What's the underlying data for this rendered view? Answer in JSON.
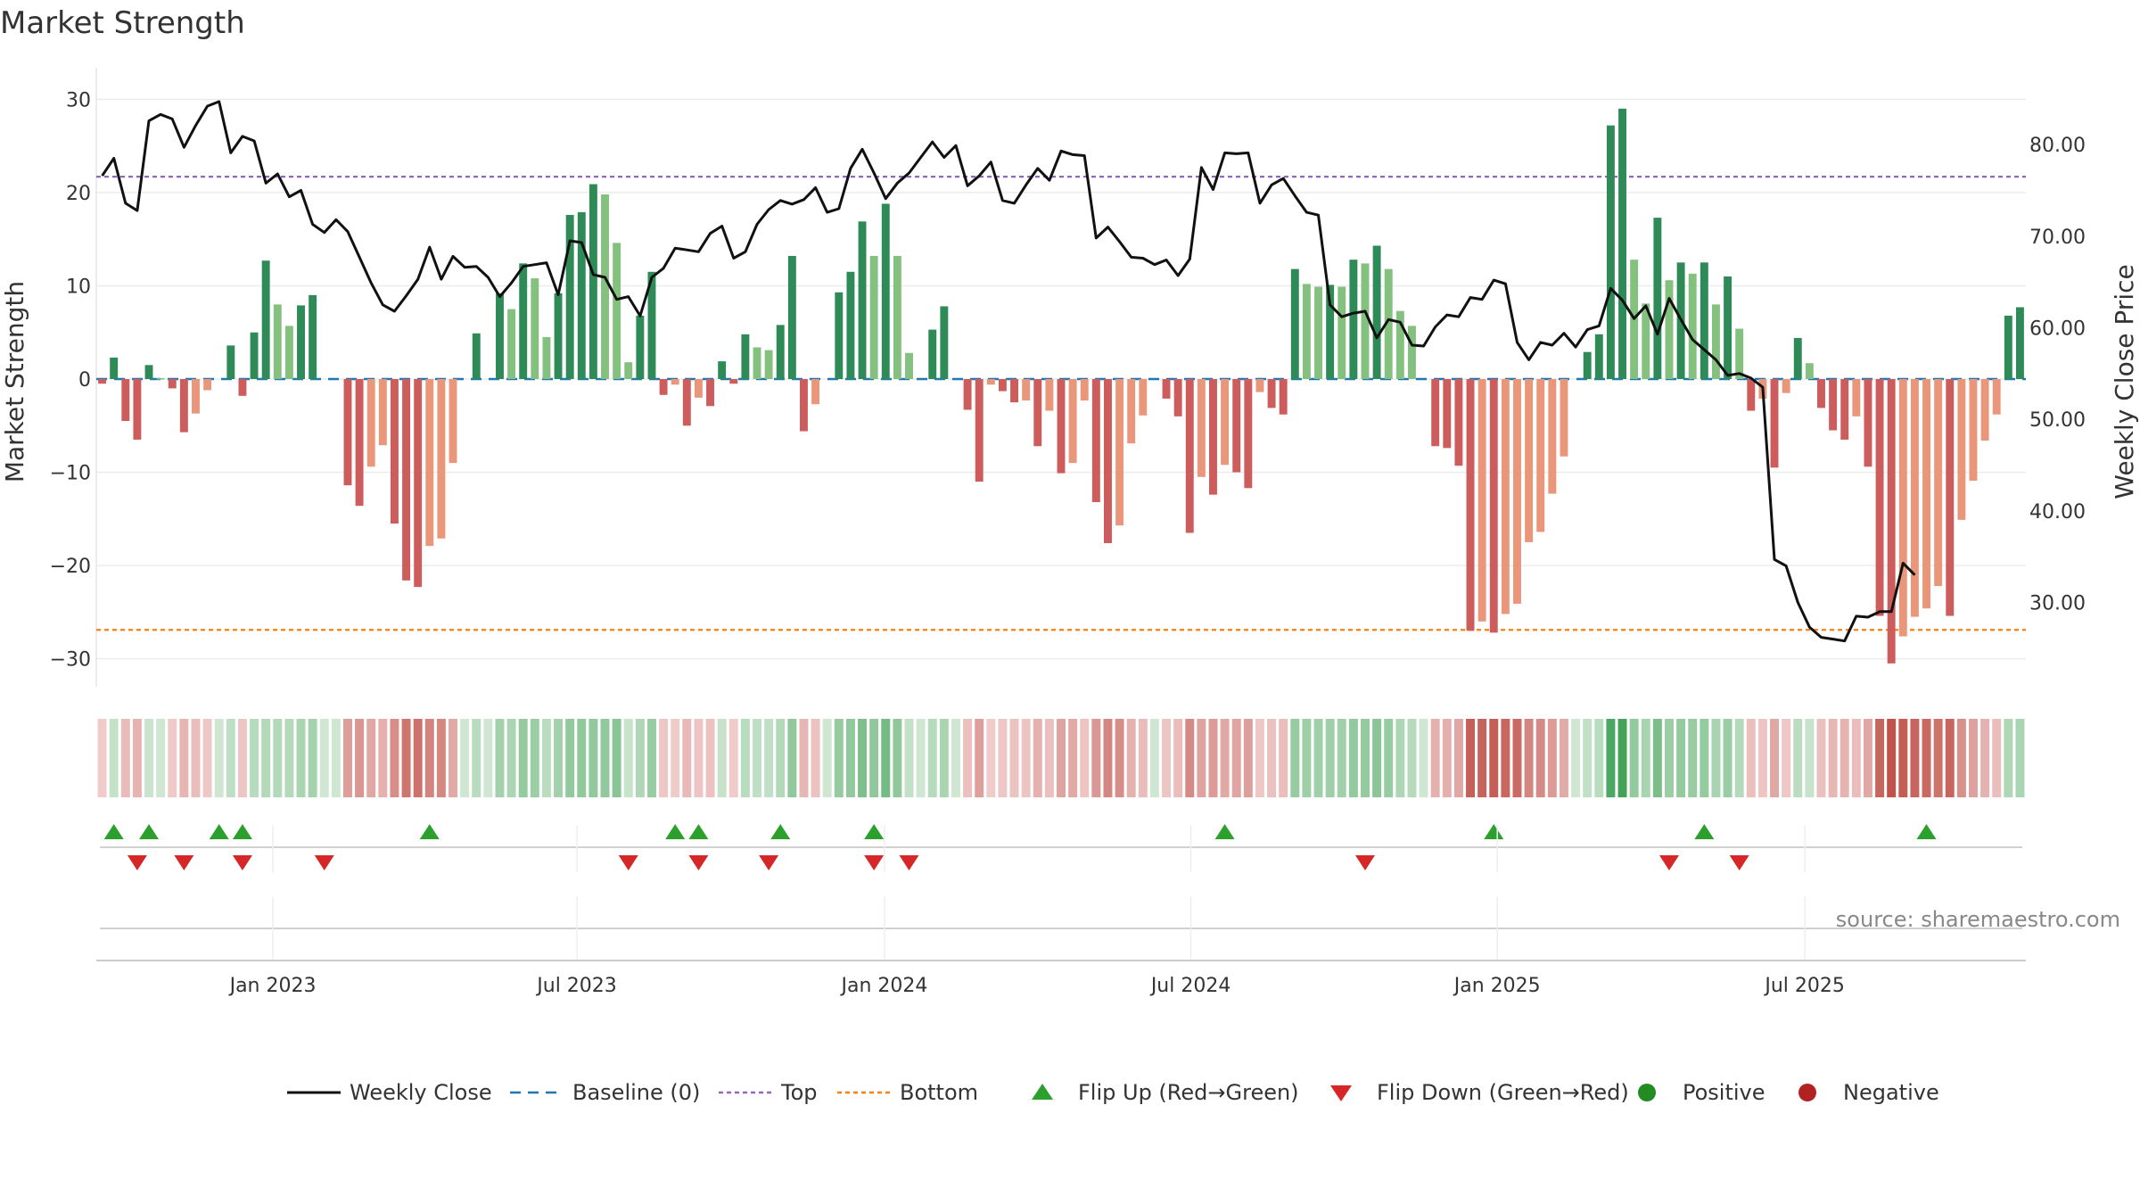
{
  "chart_data": {
    "type": "bar",
    "title": "Market Strength",
    "ylabel_left": "Market Strength",
    "ylabel_right": "Weekly Close Price",
    "source": "source: sharemaestro.com",
    "ylim_left": [
      -33,
      33
    ],
    "ylim_right": [
      20.8,
      88
    ],
    "yticks_left": [
      "30",
      "20",
      "10",
      "0",
      "−10",
      "−20",
      "−30"
    ],
    "yticks_left_values": [
      30,
      20,
      10,
      0,
      -10,
      -20,
      -30
    ],
    "yticks_right": [
      "80.00",
      "70.00",
      "60.00",
      "50.00",
      "40.00",
      "30.00"
    ],
    "yticks_right_values": [
      80,
      70,
      60,
      50,
      40,
      30
    ],
    "x_labels": [
      "Jan 2023",
      "Jul 2023",
      "Jan 2024",
      "Jul 2024",
      "Jan 2025",
      "Jul 2025"
    ],
    "x_label_weeks": [
      14.6,
      40.6,
      66.9,
      93.1,
      119.3,
      145.6
    ],
    "top_line": 21.7,
    "bottom_line": -26.9,
    "colors": {
      "strong_pos": "#2e8b57",
      "weak_pos": "#85c17e",
      "strong_neg": "#cd5c5c",
      "weak_neg": "#e9967a",
      "close": "#111111",
      "baseline": "#1f77b4",
      "top": "#9467bd",
      "bottom": "#ff7f0e",
      "flip_up": "#2ca02c",
      "flip_down": "#d62728",
      "positive": "#228b22",
      "negative": "#b22222"
    },
    "strength": [
      -0.5,
      2.3,
      -4.5,
      -6.5,
      1.5,
      0.1,
      -1,
      -5.7,
      -3.7,
      -1.2,
      0,
      3.6,
      -1.8,
      5,
      12.7,
      8,
      5.7,
      7.9,
      9,
      0,
      0,
      -11.4,
      -13.6,
      -9.4,
      -7.1,
      -15.5,
      -21.6,
      -22.3,
      -17.9,
      -17.1,
      -9,
      0,
      4.9,
      0,
      9.2,
      7.5,
      12.4,
      10.8,
      4.5,
      9.2,
      17.6,
      17.9,
      20.9,
      19.8,
      14.6,
      1.8,
      6.8,
      11.5,
      -1.7,
      -0.6,
      -5,
      -2,
      -2.9,
      1.9,
      -0.5,
      4.8,
      3.4,
      3.1,
      5.8,
      13.2,
      -5.6,
      -2.7,
      0,
      9.3,
      11.5,
      16.9,
      13.2,
      18.8,
      13.2,
      2.8,
      0,
      5.3,
      7.8,
      0,
      -3.3,
      -11,
      -0.6,
      -1.3,
      -2.5,
      -2.3,
      -7.2,
      -3.4,
      -10.1,
      -9,
      -2.3,
      -13.2,
      -17.6,
      -15.7,
      -6.9,
      -3.9,
      0,
      -2.1,
      -4,
      -16.5,
      -10.5,
      -12.4,
      -9.2,
      -10,
      -11.7,
      -1.4,
      -3.1,
      -3.8,
      11.8,
      10.2,
      9.9,
      10.1,
      9.9,
      12.8,
      12.4,
      14.3,
      11.8,
      7.3,
      5.7,
      0,
      -7.2,
      -7.4,
      -9.3,
      -27,
      -26,
      -27.2,
      -25.2,
      -24.1,
      -17.5,
      -16.4,
      -12.3,
      -8.3,
      0,
      2.9,
      4.8,
      27.2,
      29,
      12.8,
      8.1,
      17.3,
      10.6,
      12.5,
      11.3,
      12.5,
      8,
      11,
      5.4,
      -3.4,
      -2.1,
      -9.5,
      -1.5,
      4.4,
      1.7,
      -3.1,
      -5.5,
      -6.5,
      -4,
      -9.4,
      -25.4,
      -30.5,
      -27.6,
      -25.5,
      -24.6,
      -22.2,
      -25.4,
      -15.1,
      -10.9,
      -6.6,
      -3.8,
      6.8,
      7.7
    ],
    "close": [
      76.6,
      78.5,
      73.6,
      72.8,
      82.6,
      83.3,
      82.8,
      79.7,
      82.1,
      84.2,
      84.7,
      79.1,
      80.9,
      80.4,
      75.8,
      76.8,
      74.3,
      75,
      71.3,
      70.4,
      71.8,
      70.5,
      67.7,
      64.9,
      62.5,
      61.8,
      63.5,
      65.3,
      68.8,
      65.3,
      67.8,
      66.6,
      66.7,
      65.5,
      63.4,
      64.9,
      66.7,
      66.9,
      67.1,
      63.6,
      69.5,
      69.3,
      65.8,
      65.5,
      63.1,
      63.4,
      61.3,
      65.5,
      66.5,
      68.7,
      68.5,
      68.3,
      70.3,
      71.1,
      67.6,
      68.3,
      71.3,
      72.9,
      73.9,
      73.5,
      74,
      75.3,
      72.6,
      73,
      77.4,
      79.5,
      76.9,
      74.1,
      75.8,
      76.9,
      78.6,
      80.3,
      78.6,
      79.9,
      75.5,
      76.6,
      78.1,
      73.9,
      73.6,
      75.6,
      77.4,
      76.1,
      79.3,
      78.9,
      78.8,
      69.8,
      71,
      69.4,
      67.7,
      67.6,
      66.9,
      67.4,
      65.7,
      67.5,
      77.5,
      75.1,
      79.1,
      79,
      79.1,
      73.6,
      75.6,
      76.3,
      74.4,
      72.6,
      72.3,
      62.5,
      61.2,
      61.6,
      61.8,
      58.9,
      60.9,
      60.6,
      58.1,
      58,
      60.1,
      61.4,
      61.2,
      63.3,
      63.1,
      65.2,
      64.8,
      58.4,
      56.5,
      58.4,
      58.1,
      59.4,
      57.9,
      59.8,
      60.2,
      64.3,
      63,
      61,
      62.4,
      59.3,
      63.2,
      60.9,
      58.7,
      57.6,
      56.5,
      54.8,
      55,
      54.5,
      53.5,
      34.7,
      34,
      30,
      27.3,
      26.2,
      26,
      25.8,
      28.5,
      28.4,
      29,
      29,
      34.3,
      33
    ],
    "flip_up_weeks": [
      1,
      4,
      10,
      12,
      28,
      49,
      51,
      58,
      66,
      96,
      119,
      137,
      156
    ],
    "flip_down_weeks": [
      3,
      7,
      12,
      19,
      45,
      51,
      57,
      66,
      69,
      108,
      134,
      140
    ],
    "heat_strength": [
      -0.5,
      2.3,
      -4.5,
      -6.5,
      1.5,
      0.1,
      -1,
      -5.7,
      -3.7,
      -1.2,
      0,
      3.6,
      -1.8,
      5,
      6,
      6,
      5.7,
      7.9,
      9,
      0,
      0,
      -11.4,
      -13.6,
      -9.4,
      -7.1,
      -15.5,
      -21.6,
      -22.3,
      -17.9,
      -17.1,
      -9,
      0,
      4.9,
      0,
      9.2,
      7.5,
      12.4,
      10.8,
      4.5,
      9.2,
      13,
      13,
      13,
      13,
      14.6,
      1.8,
      6.8,
      11.5,
      -1.7,
      -0.6,
      -5,
      -2,
      -2.9,
      1.9,
      -0.5,
      4.8,
      3.4,
      3.1,
      5.8,
      13.2,
      -5.6,
      -2.7,
      0,
      12,
      13,
      16.9,
      13.2,
      18.8,
      13.2,
      2.8,
      0,
      5.3,
      7.8,
      0,
      -3.3,
      -11,
      -0.6,
      -1.3,
      -2.5,
      -2.3,
      -7.2,
      -3.4,
      -10.1,
      -9,
      -2.3,
      -13.2,
      -17.6,
      -15.7,
      -6.9,
      -3.9,
      0,
      -2.1,
      -4,
      -16.5,
      -10.5,
      -12.4,
      -9.2,
      -10,
      -11.7,
      -1.4,
      -3.1,
      -3.8,
      11.8,
      10.2,
      9.9,
      10.1,
      9.9,
      12.8,
      12.4,
      14.3,
      11.8,
      7.3,
      5.7,
      0,
      -7.2,
      -7.4,
      -9.3,
      -27,
      -26,
      -27.2,
      -25.2,
      -24.1,
      -17.5,
      -16.4,
      -12.3,
      -8.3,
      0,
      2.9,
      4.8,
      27.2,
      29,
      12.8,
      8.1,
      17.3,
      10.6,
      12.5,
      11.3,
      12.5,
      8,
      11,
      5.4,
      -3.4,
      -2.1,
      -9.5,
      -1.5,
      4.4,
      1.7,
      -3.1,
      -5.5,
      -6.5,
      -4,
      -9.4,
      -25.4,
      -30.5,
      -27.6,
      -25.5,
      -24.6,
      -22.2,
      -25.4,
      -15.1,
      -10.9,
      -6.6,
      -3.8,
      6.8,
      7.7
    ]
  },
  "legend": {
    "items": [
      {
        "label": "Weekly Close",
        "kind": "line-solid"
      },
      {
        "label": "Baseline (0)",
        "kind": "line-dash"
      },
      {
        "label": "Top",
        "kind": "line-dot-purple"
      },
      {
        "label": "Bottom",
        "kind": "line-dot-orange"
      },
      {
        "label": "Flip Up (Red→Green)",
        "kind": "triangle-up"
      },
      {
        "label": "Flip Down (Green→Red)",
        "kind": "triangle-down"
      },
      {
        "label": "Positive",
        "kind": "dot-green"
      },
      {
        "label": "Negative",
        "kind": "dot-red"
      }
    ]
  }
}
